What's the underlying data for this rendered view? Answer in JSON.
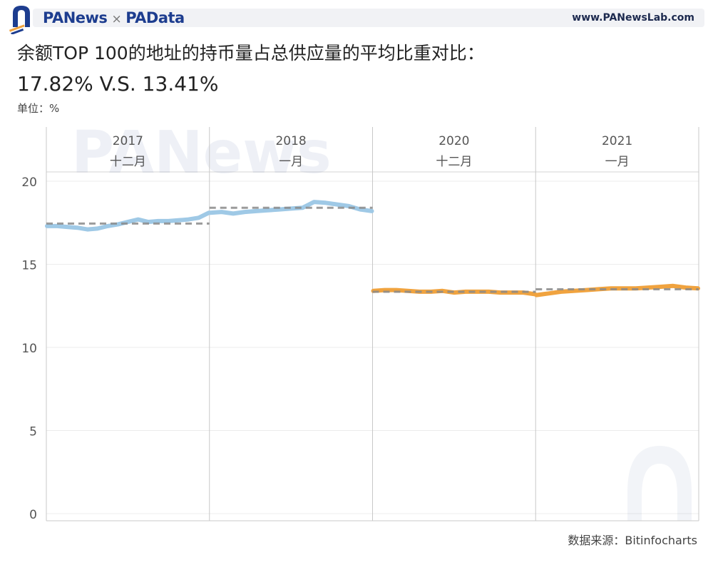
{
  "header": {
    "brand_left": "PANews",
    "brand_sep": "×",
    "brand_right": "PAData",
    "site": "www.PANewsLab.com"
  },
  "title": "余额TOP 100的地址的持币量占总供应量的平均比重对比：",
  "subtitle": "17.82% V.S. 13.41%",
  "unit_label": "单位：%",
  "source": "数据来源：Bitinfocharts",
  "watermark": "PANews",
  "colors": {
    "series_a": "#9fc9e6",
    "series_b": "#f0a33f",
    "avg_line": "#8a8a8a",
    "brand": "#1d3d8f"
  },
  "chart_data": {
    "type": "line",
    "ylim": [
      0,
      20
    ],
    "yticks": [
      0,
      5,
      10,
      15,
      20
    ],
    "grid": true,
    "panels": [
      {
        "year": "2017",
        "month": "十二月",
        "color": "#9fc9e6",
        "avg": 17.45,
        "values": [
          17.3,
          17.3,
          17.25,
          17.2,
          17.1,
          17.15,
          17.3,
          17.4,
          17.55,
          17.7,
          17.55,
          17.6,
          17.6,
          17.65,
          17.7,
          17.8,
          18.1
        ]
      },
      {
        "year": "2018",
        "month": "一月",
        "color": "#9fc9e6",
        "avg": 18.4,
        "values": [
          18.1,
          18.15,
          18.05,
          18.15,
          18.2,
          18.25,
          18.3,
          18.35,
          18.4,
          18.75,
          18.7,
          18.6,
          18.5,
          18.3,
          18.2
        ]
      },
      {
        "year": "2020",
        "month": "十二月",
        "color": "#f0a33f",
        "avg": 13.35,
        "values": [
          13.4,
          13.45,
          13.45,
          13.4,
          13.35,
          13.35,
          13.4,
          13.3,
          13.35,
          13.35,
          13.35,
          13.3,
          13.3,
          13.3,
          13.2
        ]
      },
      {
        "year": "2021",
        "month": "一月",
        "color": "#f0a33f",
        "avg": 13.5,
        "values": [
          13.15,
          13.25,
          13.35,
          13.4,
          13.45,
          13.5,
          13.55,
          13.55,
          13.55,
          13.6,
          13.65,
          13.7,
          13.6,
          13.55
        ]
      }
    ]
  }
}
